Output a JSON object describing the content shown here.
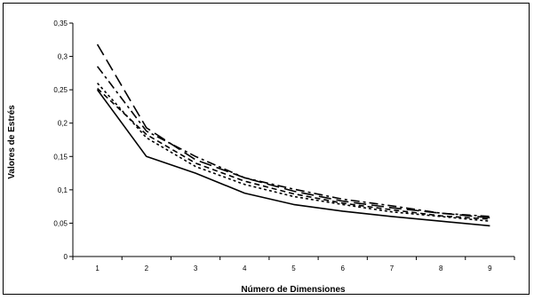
{
  "chart_data": {
    "type": "line",
    "title": "",
    "xlabel": "Número de Dimensiones",
    "ylabel": "Valores de Estrés",
    "x": [
      1,
      2,
      3,
      4,
      5,
      6,
      7,
      8,
      9
    ],
    "x_tick_labels": [
      "1",
      "2",
      "3",
      "4",
      "5",
      "6",
      "7",
      "8",
      "9"
    ],
    "ylim": [
      0,
      0.35
    ],
    "y_tick_labels": [
      "0",
      "0,05",
      "0,1",
      "0,15",
      "0,2",
      "0,25",
      "0,3",
      "0,35"
    ],
    "grid": false,
    "legend": "none",
    "series": [
      {
        "values": [
          0.25,
          0.15,
          0.125,
          0.095,
          0.078,
          0.068,
          0.06,
          0.053,
          0.046
        ],
        "line_style": "solid",
        "color": "#000000"
      },
      {
        "values": [
          0.26,
          0.178,
          0.135,
          0.108,
          0.09,
          0.078,
          0.067,
          0.06,
          0.053
        ],
        "line_style": "dotted",
        "color": "#000000"
      },
      {
        "values": [
          0.252,
          0.183,
          0.14,
          0.113,
          0.094,
          0.08,
          0.07,
          0.061,
          0.056
        ],
        "line_style": "dashed",
        "color": "#000000"
      },
      {
        "values": [
          0.285,
          0.188,
          0.15,
          0.118,
          0.101,
          0.086,
          0.076,
          0.065,
          0.06
        ],
        "line_style": "dash-dot",
        "color": "#000000"
      },
      {
        "values": [
          0.318,
          0.193,
          0.145,
          0.118,
          0.098,
          0.083,
          0.073,
          0.065,
          0.058
        ],
        "line_style": "long-dash",
        "color": "#000000"
      }
    ]
  }
}
